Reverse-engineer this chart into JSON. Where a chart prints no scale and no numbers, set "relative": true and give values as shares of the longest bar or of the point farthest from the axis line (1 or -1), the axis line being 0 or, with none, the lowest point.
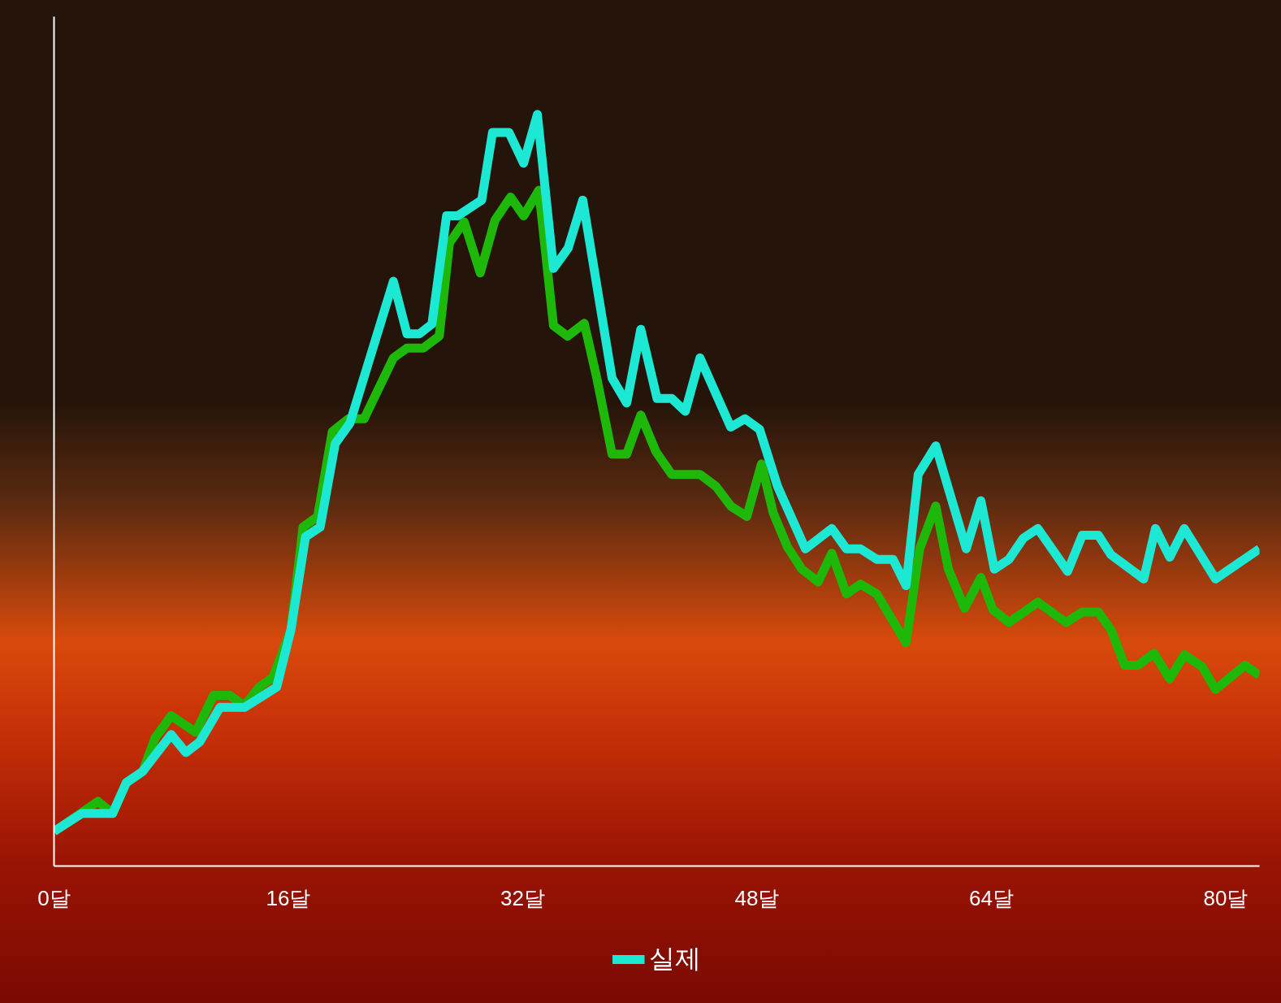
{
  "chart_data": {
    "type": "line",
    "relative": true,
    "xlim": [
      0,
      82.3
    ],
    "xticks": [
      {
        "value": 0,
        "label": "0달"
      },
      {
        "value": 16,
        "label": "16달"
      },
      {
        "value": 32,
        "label": "32달"
      },
      {
        "value": 48,
        "label": "48달"
      },
      {
        "value": 64,
        "label": "64달"
      },
      {
        "value": 80,
        "label": "80달"
      }
    ],
    "legend": "bottom",
    "grid": false,
    "marker": "none",
    "line_style": "solid",
    "series": [
      {
        "color": "#1db80a",
        "x": [
          0,
          3.0,
          4.0,
          4.94,
          6.06,
          6.89,
          8.0,
          9.67,
          10.89,
          12.0,
          13.0,
          14.0,
          14.94,
          16.17,
          17.0,
          18.0,
          19.0,
          20.1,
          21.17,
          23.17,
          24.1,
          25.2,
          26.3,
          27.0,
          28.0,
          29.1,
          30.1,
          31.17,
          32.06,
          33.1,
          34.1,
          35.06,
          36.2,
          37.06,
          38.1,
          39.1,
          40.06,
          41.1,
          42.17,
          44.1,
          45.2,
          46.2,
          47.3,
          48.3,
          49.1,
          50.06,
          51.06,
          52.17,
          53.1,
          54.1,
          55.06,
          56.17,
          58.17,
          59.1,
          60.2,
          61.06,
          62.17,
          63.28,
          64.1,
          65.2,
          67.17,
          69.1,
          70.2,
          71.3,
          72.17,
          73.1,
          74.0,
          75.1,
          76.17,
          77.17,
          78.4,
          79.3,
          81.3,
          82.3
        ],
        "values": [
          0.046,
          0.086,
          0.07,
          0.111,
          0.126,
          0.17,
          0.2,
          0.178,
          0.227,
          0.227,
          0.213,
          0.238,
          0.251,
          0.314,
          0.451,
          0.465,
          0.578,
          0.595,
          0.595,
          0.676,
          0.689,
          0.689,
          0.705,
          0.829,
          0.857,
          0.789,
          0.859,
          0.89,
          0.865,
          0.899,
          0.719,
          0.705,
          0.722,
          0.649,
          0.548,
          0.548,
          0.6,
          0.551,
          0.521,
          0.521,
          0.505,
          0.479,
          0.465,
          0.535,
          0.47,
          0.425,
          0.395,
          0.378,
          0.416,
          0.362,
          0.375,
          0.362,
          0.297,
          0.422,
          0.479,
          0.395,
          0.343,
          0.384,
          0.341,
          0.324,
          0.351,
          0.324,
          0.338,
          0.338,
          0.314,
          0.267,
          0.267,
          0.283,
          0.249,
          0.281,
          0.265,
          0.235,
          0.267,
          0.254
        ]
      },
      {
        "name": "실제",
        "color": "#1de8d4",
        "x": [
          0,
          1.9,
          4.0,
          4.94,
          6.06,
          8.0,
          9.0,
          9.94,
          11.33,
          13.0,
          15.2,
          16.17,
          17.17,
          18.17,
          19.2,
          20.2,
          23.17,
          24.1,
          24.94,
          25.8,
          26.8,
          27.56,
          29.2,
          29.94,
          31.06,
          32.06,
          33.0,
          34.1,
          35.1,
          36.1,
          37.28,
          38.1,
          39.1,
          40.06,
          41.17,
          42.17,
          43.1,
          44.1,
          46.2,
          47.17,
          48.17,
          49.4,
          51.3,
          53.1,
          54.1,
          55.06,
          56.17,
          57.28,
          58.17,
          59.0,
          60.2,
          62.28,
          63.28,
          64.2,
          65.2,
          66.17,
          67.17,
          69.2,
          70.2,
          71.3,
          72.17,
          74.4,
          75.2,
          76.17,
          77.17,
          79.3,
          82.3
        ],
        "values": [
          0.046,
          0.07,
          0.07,
          0.111,
          0.126,
          0.175,
          0.151,
          0.165,
          0.211,
          0.211,
          0.238,
          0.314,
          0.438,
          0.451,
          0.562,
          0.589,
          0.778,
          0.708,
          0.708,
          0.721,
          0.865,
          0.865,
          0.886,
          0.976,
          0.976,
          0.935,
          1.0,
          0.795,
          0.822,
          0.886,
          0.746,
          0.649,
          0.616,
          0.714,
          0.622,
          0.622,
          0.605,
          0.676,
          0.584,
          0.595,
          0.581,
          0.505,
          0.422,
          0.449,
          0.422,
          0.422,
          0.408,
          0.408,
          0.373,
          0.521,
          0.559,
          0.422,
          0.486,
          0.395,
          0.408,
          0.436,
          0.449,
          0.392,
          0.44,
          0.44,
          0.414,
          0.382,
          0.449,
          0.411,
          0.449,
          0.382,
          0.422
        ]
      }
    ]
  }
}
